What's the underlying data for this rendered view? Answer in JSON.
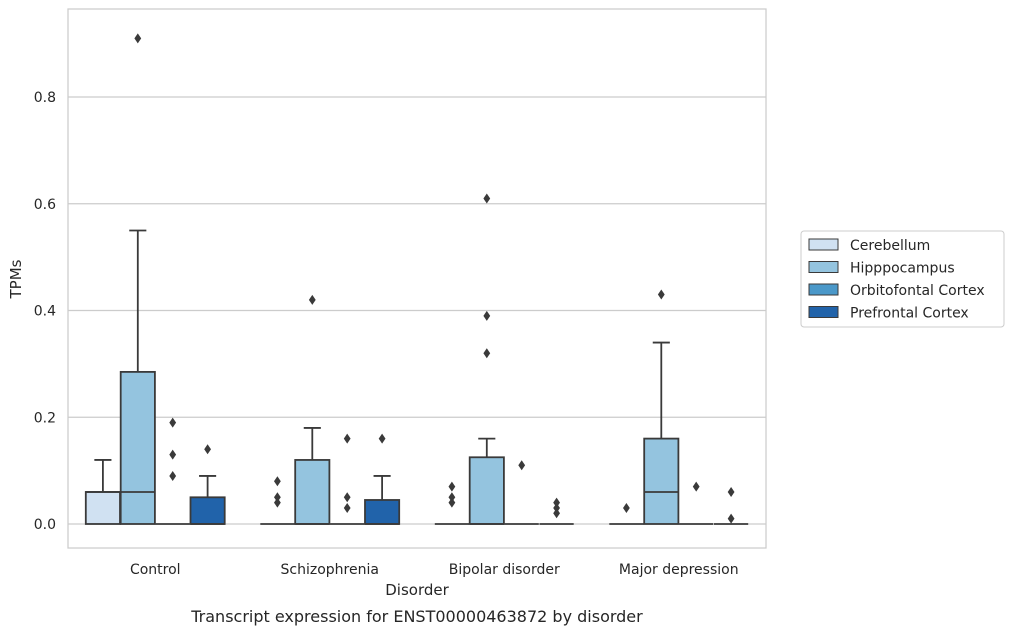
{
  "chart_data": {
    "type": "box",
    "caption": "Transcript expression for ENST00000463872 by disorder",
    "xlabel": "Disorder",
    "ylabel": "TPMs",
    "ylim": [
      -0.045,
      0.965
    ],
    "yticks": [
      0.0,
      0.2,
      0.4,
      0.6,
      0.8
    ],
    "ytick_labels": [
      "0.0",
      "0.2",
      "0.4",
      "0.6",
      "0.8"
    ],
    "grid": "horizontal",
    "legend_position": "right",
    "categories": [
      "Control",
      "Schizophrenia",
      "Bipolar disorder",
      "Major depression"
    ],
    "series": [
      {
        "name": "Cerebellum",
        "color": "#d0e1f2",
        "boxes": [
          {
            "min": 0,
            "q1": 0,
            "median": 0.06,
            "q3": 0.06,
            "max": 0.12,
            "outliers": []
          },
          {
            "min": 0,
            "q1": 0,
            "median": 0,
            "q3": 0,
            "max": 0,
            "outliers": [
              0.04,
              0.05,
              0.08
            ]
          },
          {
            "min": 0,
            "q1": 0,
            "median": 0,
            "q3": 0,
            "max": 0,
            "outliers": [
              0.04,
              0.05,
              0.07
            ]
          },
          {
            "min": 0,
            "q1": 0,
            "median": 0,
            "q3": 0,
            "max": 0,
            "outliers": [
              0.03
            ]
          }
        ]
      },
      {
        "name": "Hipppocampus",
        "color": "#94c4df",
        "boxes": [
          {
            "min": 0,
            "q1": 0,
            "median": 0.06,
            "q3": 0.285,
            "max": 0.55,
            "outliers": [
              0.91
            ]
          },
          {
            "min": 0,
            "q1": 0,
            "median": 0,
            "q3": 0.12,
            "max": 0.18,
            "outliers": [
              0.42
            ]
          },
          {
            "min": 0,
            "q1": 0,
            "median": 0,
            "q3": 0.125,
            "max": 0.16,
            "outliers": [
              0.32,
              0.39,
              0.61
            ]
          },
          {
            "min": 0,
            "q1": 0,
            "median": 0.06,
            "q3": 0.16,
            "max": 0.34,
            "outliers": [
              0.43
            ]
          }
        ]
      },
      {
        "name": "Orbitofontal Cortex",
        "color": "#4a98c9",
        "boxes": [
          {
            "min": 0,
            "q1": 0,
            "median": 0,
            "q3": 0,
            "max": 0,
            "outliers": [
              0.09,
              0.13,
              0.19
            ]
          },
          {
            "min": 0,
            "q1": 0,
            "median": 0,
            "q3": 0,
            "max": 0,
            "outliers": [
              0.03,
              0.05,
              0.16
            ]
          },
          {
            "min": 0,
            "q1": 0,
            "median": 0,
            "q3": 0,
            "max": 0,
            "outliers": [
              0.11
            ]
          },
          {
            "min": 0,
            "q1": 0,
            "median": 0,
            "q3": 0,
            "max": 0,
            "outliers": [
              0.07
            ]
          }
        ]
      },
      {
        "name": "Prefrontal Cortex",
        "color": "#2163aa",
        "boxes": [
          {
            "min": 0,
            "q1": 0,
            "median": 0,
            "q3": 0.05,
            "max": 0.09,
            "outliers": [
              0.14
            ]
          },
          {
            "min": 0,
            "q1": 0,
            "median": 0,
            "q3": 0.045,
            "max": 0.09,
            "outliers": [
              0.16
            ]
          },
          {
            "min": 0,
            "q1": 0,
            "median": 0,
            "q3": 0,
            "max": 0,
            "outliers": [
              0.02,
              0.03,
              0.04
            ]
          },
          {
            "min": 0,
            "q1": 0,
            "median": 0,
            "q3": 0,
            "max": 0,
            "outliers": [
              0.01,
              0.06
            ]
          }
        ]
      }
    ]
  }
}
